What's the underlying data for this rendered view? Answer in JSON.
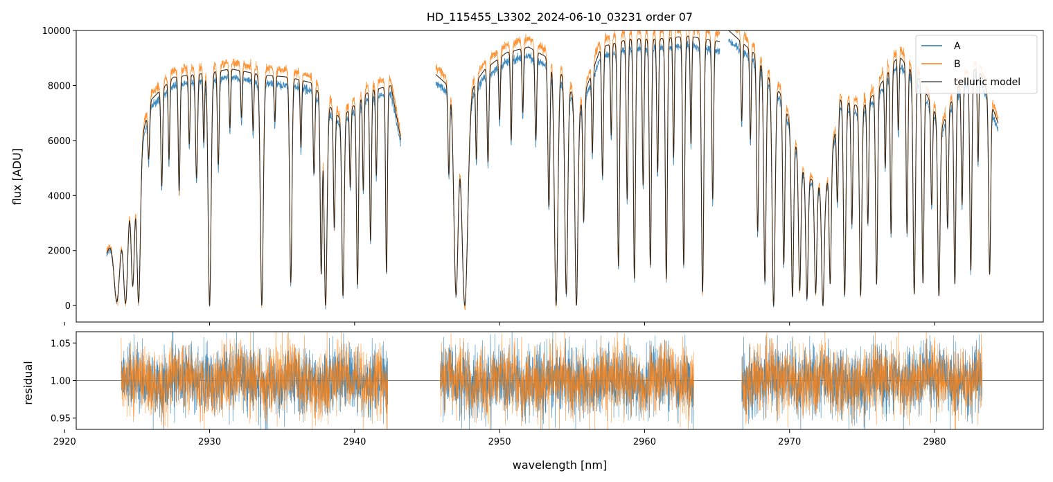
{
  "chart_data": [
    {
      "type": "line",
      "panel": "top",
      "title": "HD_115455_L3302_2024-06-10_03231  order 07",
      "xlabel": "",
      "ylabel": "flux [ADU]",
      "xlim": [
        2920.8,
        2987.5
      ],
      "ylim": [
        -600,
        10000
      ],
      "yticks": [
        0,
        2000,
        4000,
        6000,
        8000,
        10000
      ],
      "ytick_labels": [
        "0",
        "2000",
        "4000",
        "6000",
        "8000",
        "10000"
      ],
      "xticks": [
        2920,
        2930,
        2940,
        2950,
        2960,
        2970,
        2980
      ],
      "legend": "top-right",
      "series": [
        {
          "name": "A",
          "color": "#1f77b4"
        },
        {
          "name": "B",
          "color": "#ff7f0e"
        },
        {
          "name": "telluric model",
          "color": "#555555"
        }
      ],
      "segments_nm": [
        [
          2922.9,
          2943.2
        ],
        [
          2945.6,
          2965.2
        ],
        [
          2965.8,
          2984.4
        ]
      ],
      "continuum_nm": [
        [
          2922.9,
          1900
        ],
        [
          2924.0,
          3400
        ],
        [
          2925.0,
          5500
        ],
        [
          2926.0,
          7500
        ],
        [
          2927.5,
          8300
        ],
        [
          2929.0,
          8400
        ],
        [
          2931.5,
          8600
        ],
        [
          2933.5,
          8400
        ],
        [
          2935.5,
          8300
        ],
        [
          2937.0,
          8100
        ],
        [
          2939.0,
          6800
        ],
        [
          2941.0,
          7800
        ],
        [
          2942.5,
          8000
        ],
        [
          2943.2,
          6000
        ],
        [
          2945.6,
          8400
        ],
        [
          2947.5,
          7500
        ],
        [
          2949.0,
          8600
        ],
        [
          2950.5,
          9200
        ],
        [
          2952.0,
          9400
        ],
        [
          2954.0,
          8800
        ],
        [
          2955.5,
          7200
        ],
        [
          2957.0,
          9400
        ],
        [
          2959.0,
          9700
        ],
        [
          2961.0,
          9700
        ],
        [
          2963.0,
          9800
        ],
        [
          2965.2,
          9600
        ],
        [
          2965.8,
          10000
        ],
        [
          2967.5,
          9200
        ],
        [
          2969.5,
          7600
        ],
        [
          2971.0,
          4800
        ],
        [
          2972.5,
          4200
        ],
        [
          2973.5,
          7500
        ],
        [
          2975.0,
          7200
        ],
        [
          2976.0,
          7800
        ],
        [
          2977.5,
          9100
        ],
        [
          2979.0,
          8200
        ],
        [
          2980.5,
          6500
        ],
        [
          2981.5,
          7900
        ],
        [
          2983.0,
          8700
        ],
        [
          2984.4,
          6600
        ]
      ],
      "absorption_lines_nm": [
        [
          2923.6,
          0.95,
          0.2
        ],
        [
          2924.2,
          0.98,
          0.15
        ],
        [
          2924.7,
          0.85,
          0.12
        ],
        [
          2925.1,
          0.98,
          0.12
        ],
        [
          2925.8,
          0.25,
          0.06
        ],
        [
          2926.7,
          0.45,
          0.06
        ],
        [
          2927.2,
          0.35,
          0.05
        ],
        [
          2927.9,
          0.5,
          0.06
        ],
        [
          2928.6,
          0.3,
          0.05
        ],
        [
          2929.1,
          0.45,
          0.07
        ],
        [
          2929.6,
          0.3,
          0.05
        ],
        [
          2930.0,
          1.0,
          0.1
        ],
        [
          2930.6,
          0.4,
          0.06
        ],
        [
          2931.4,
          0.25,
          0.05
        ],
        [
          2932.2,
          0.2,
          0.05
        ],
        [
          2933.0,
          0.25,
          0.05
        ],
        [
          2933.6,
          1.0,
          0.1
        ],
        [
          2934.5,
          0.2,
          0.05
        ],
        [
          2935.6,
          0.9,
          0.08
        ],
        [
          2936.3,
          0.3,
          0.05
        ],
        [
          2937.2,
          0.4,
          0.06
        ],
        [
          2937.7,
          0.85,
          0.07
        ],
        [
          2938.0,
          1.0,
          0.1
        ],
        [
          2938.6,
          0.6,
          0.06
        ],
        [
          2939.2,
          0.95,
          0.08
        ],
        [
          2939.7,
          0.4,
          0.05
        ],
        [
          2940.2,
          0.9,
          0.07
        ],
        [
          2940.6,
          0.45,
          0.05
        ],
        [
          2941.1,
          0.7,
          0.06
        ],
        [
          2941.5,
          0.4,
          0.05
        ],
        [
          2942.2,
          0.85,
          0.06
        ],
        [
          2946.5,
          0.4,
          0.06
        ],
        [
          2947.0,
          0.95,
          0.15
        ],
        [
          2947.6,
          1.0,
          0.2
        ],
        [
          2948.4,
          0.35,
          0.05
        ],
        [
          2949.2,
          0.4,
          0.06
        ],
        [
          2950.0,
          0.25,
          0.05
        ],
        [
          2950.8,
          0.35,
          0.05
        ],
        [
          2951.6,
          0.25,
          0.05
        ],
        [
          2952.5,
          0.35,
          0.06
        ],
        [
          2953.4,
          0.6,
          0.07
        ],
        [
          2953.9,
          1.0,
          0.12
        ],
        [
          2954.6,
          0.95,
          0.1
        ],
        [
          2955.3,
          1.0,
          0.1
        ],
        [
          2955.8,
          0.6,
          0.06
        ],
        [
          2956.4,
          0.35,
          0.05
        ],
        [
          2957.1,
          0.5,
          0.06
        ],
        [
          2957.7,
          0.35,
          0.05
        ],
        [
          2958.2,
          0.85,
          0.07
        ],
        [
          2958.8,
          0.6,
          0.06
        ],
        [
          2959.3,
          0.9,
          0.07
        ],
        [
          2959.9,
          0.55,
          0.06
        ],
        [
          2960.4,
          0.85,
          0.07
        ],
        [
          2960.9,
          0.5,
          0.06
        ],
        [
          2961.5,
          0.9,
          0.07
        ],
        [
          2962.0,
          0.45,
          0.05
        ],
        [
          2962.7,
          0.85,
          0.07
        ],
        [
          2963.2,
          0.4,
          0.05
        ],
        [
          2964.0,
          0.95,
          0.08
        ],
        [
          2964.7,
          0.6,
          0.06
        ],
        [
          2966.7,
          0.3,
          0.05
        ],
        [
          2967.3,
          0.35,
          0.05
        ],
        [
          2967.8,
          0.7,
          0.07
        ],
        [
          2968.3,
          0.9,
          0.08
        ],
        [
          2968.9,
          1.0,
          0.1
        ],
        [
          2969.6,
          0.8,
          0.07
        ],
        [
          2970.2,
          0.95,
          0.08
        ],
        [
          2970.7,
          0.9,
          0.08
        ],
        [
          2971.2,
          0.95,
          0.08
        ],
        [
          2971.8,
          0.9,
          0.08
        ],
        [
          2972.3,
          1.0,
          0.09
        ],
        [
          2972.8,
          0.85,
          0.07
        ],
        [
          2973.3,
          0.45,
          0.06
        ],
        [
          2973.8,
          0.95,
          0.08
        ],
        [
          2974.3,
          0.6,
          0.06
        ],
        [
          2974.9,
          0.95,
          0.08
        ],
        [
          2975.4,
          0.6,
          0.06
        ],
        [
          2976.0,
          0.9,
          0.07
        ],
        [
          2976.6,
          0.4,
          0.05
        ],
        [
          2977.0,
          0.7,
          0.06
        ],
        [
          2977.5,
          0.3,
          0.05
        ],
        [
          2978.1,
          0.7,
          0.06
        ],
        [
          2978.6,
          0.95,
          0.08
        ],
        [
          2979.2,
          0.9,
          0.07
        ],
        [
          2979.8,
          0.5,
          0.06
        ],
        [
          2980.3,
          0.95,
          0.08
        ],
        [
          2980.9,
          0.6,
          0.06
        ],
        [
          2981.4,
          0.9,
          0.07
        ],
        [
          2981.9,
          0.55,
          0.06
        ],
        [
          2982.5,
          0.85,
          0.07
        ],
        [
          2983.0,
          0.4,
          0.05
        ],
        [
          2983.8,
          0.85,
          0.07
        ]
      ]
    },
    {
      "type": "line",
      "panel": "bottom",
      "title": "",
      "xlabel": "wavelength [nm]",
      "ylabel": "residual",
      "xlim": [
        2920.8,
        2987.5
      ],
      "ylim": [
        0.935,
        1.065
      ],
      "yticks": [
        0.95,
        1.0,
        1.05
      ],
      "ytick_labels": [
        "0.95",
        "1.00",
        "1.05"
      ],
      "xticks": [
        2920,
        2930,
        2940,
        2950,
        2960,
        2970,
        2980
      ],
      "xtick_labels": [
        "2920",
        "2930",
        "2940",
        "2950",
        "2960",
        "2970",
        "2980"
      ],
      "reference_line": 1.0,
      "noise_sigma": 0.022,
      "series": [
        {
          "name": "A",
          "color": "#1f77b4"
        },
        {
          "name": "B",
          "color": "#ff7f0e"
        }
      ],
      "segments_nm": [
        [
          2923.9,
          2942.3
        ],
        [
          2945.9,
          2963.4
        ],
        [
          2966.7,
          2983.3
        ]
      ]
    }
  ],
  "legend": {
    "items": [
      {
        "label": "A",
        "color": "#1f77b4"
      },
      {
        "label": "B",
        "color": "#ff7f0e"
      },
      {
        "label": "telluric model",
        "color": "#555555"
      }
    ]
  },
  "colors": {
    "A": "#1f77b4",
    "B": "#ff7f0e",
    "model": "#3a2a1a"
  }
}
